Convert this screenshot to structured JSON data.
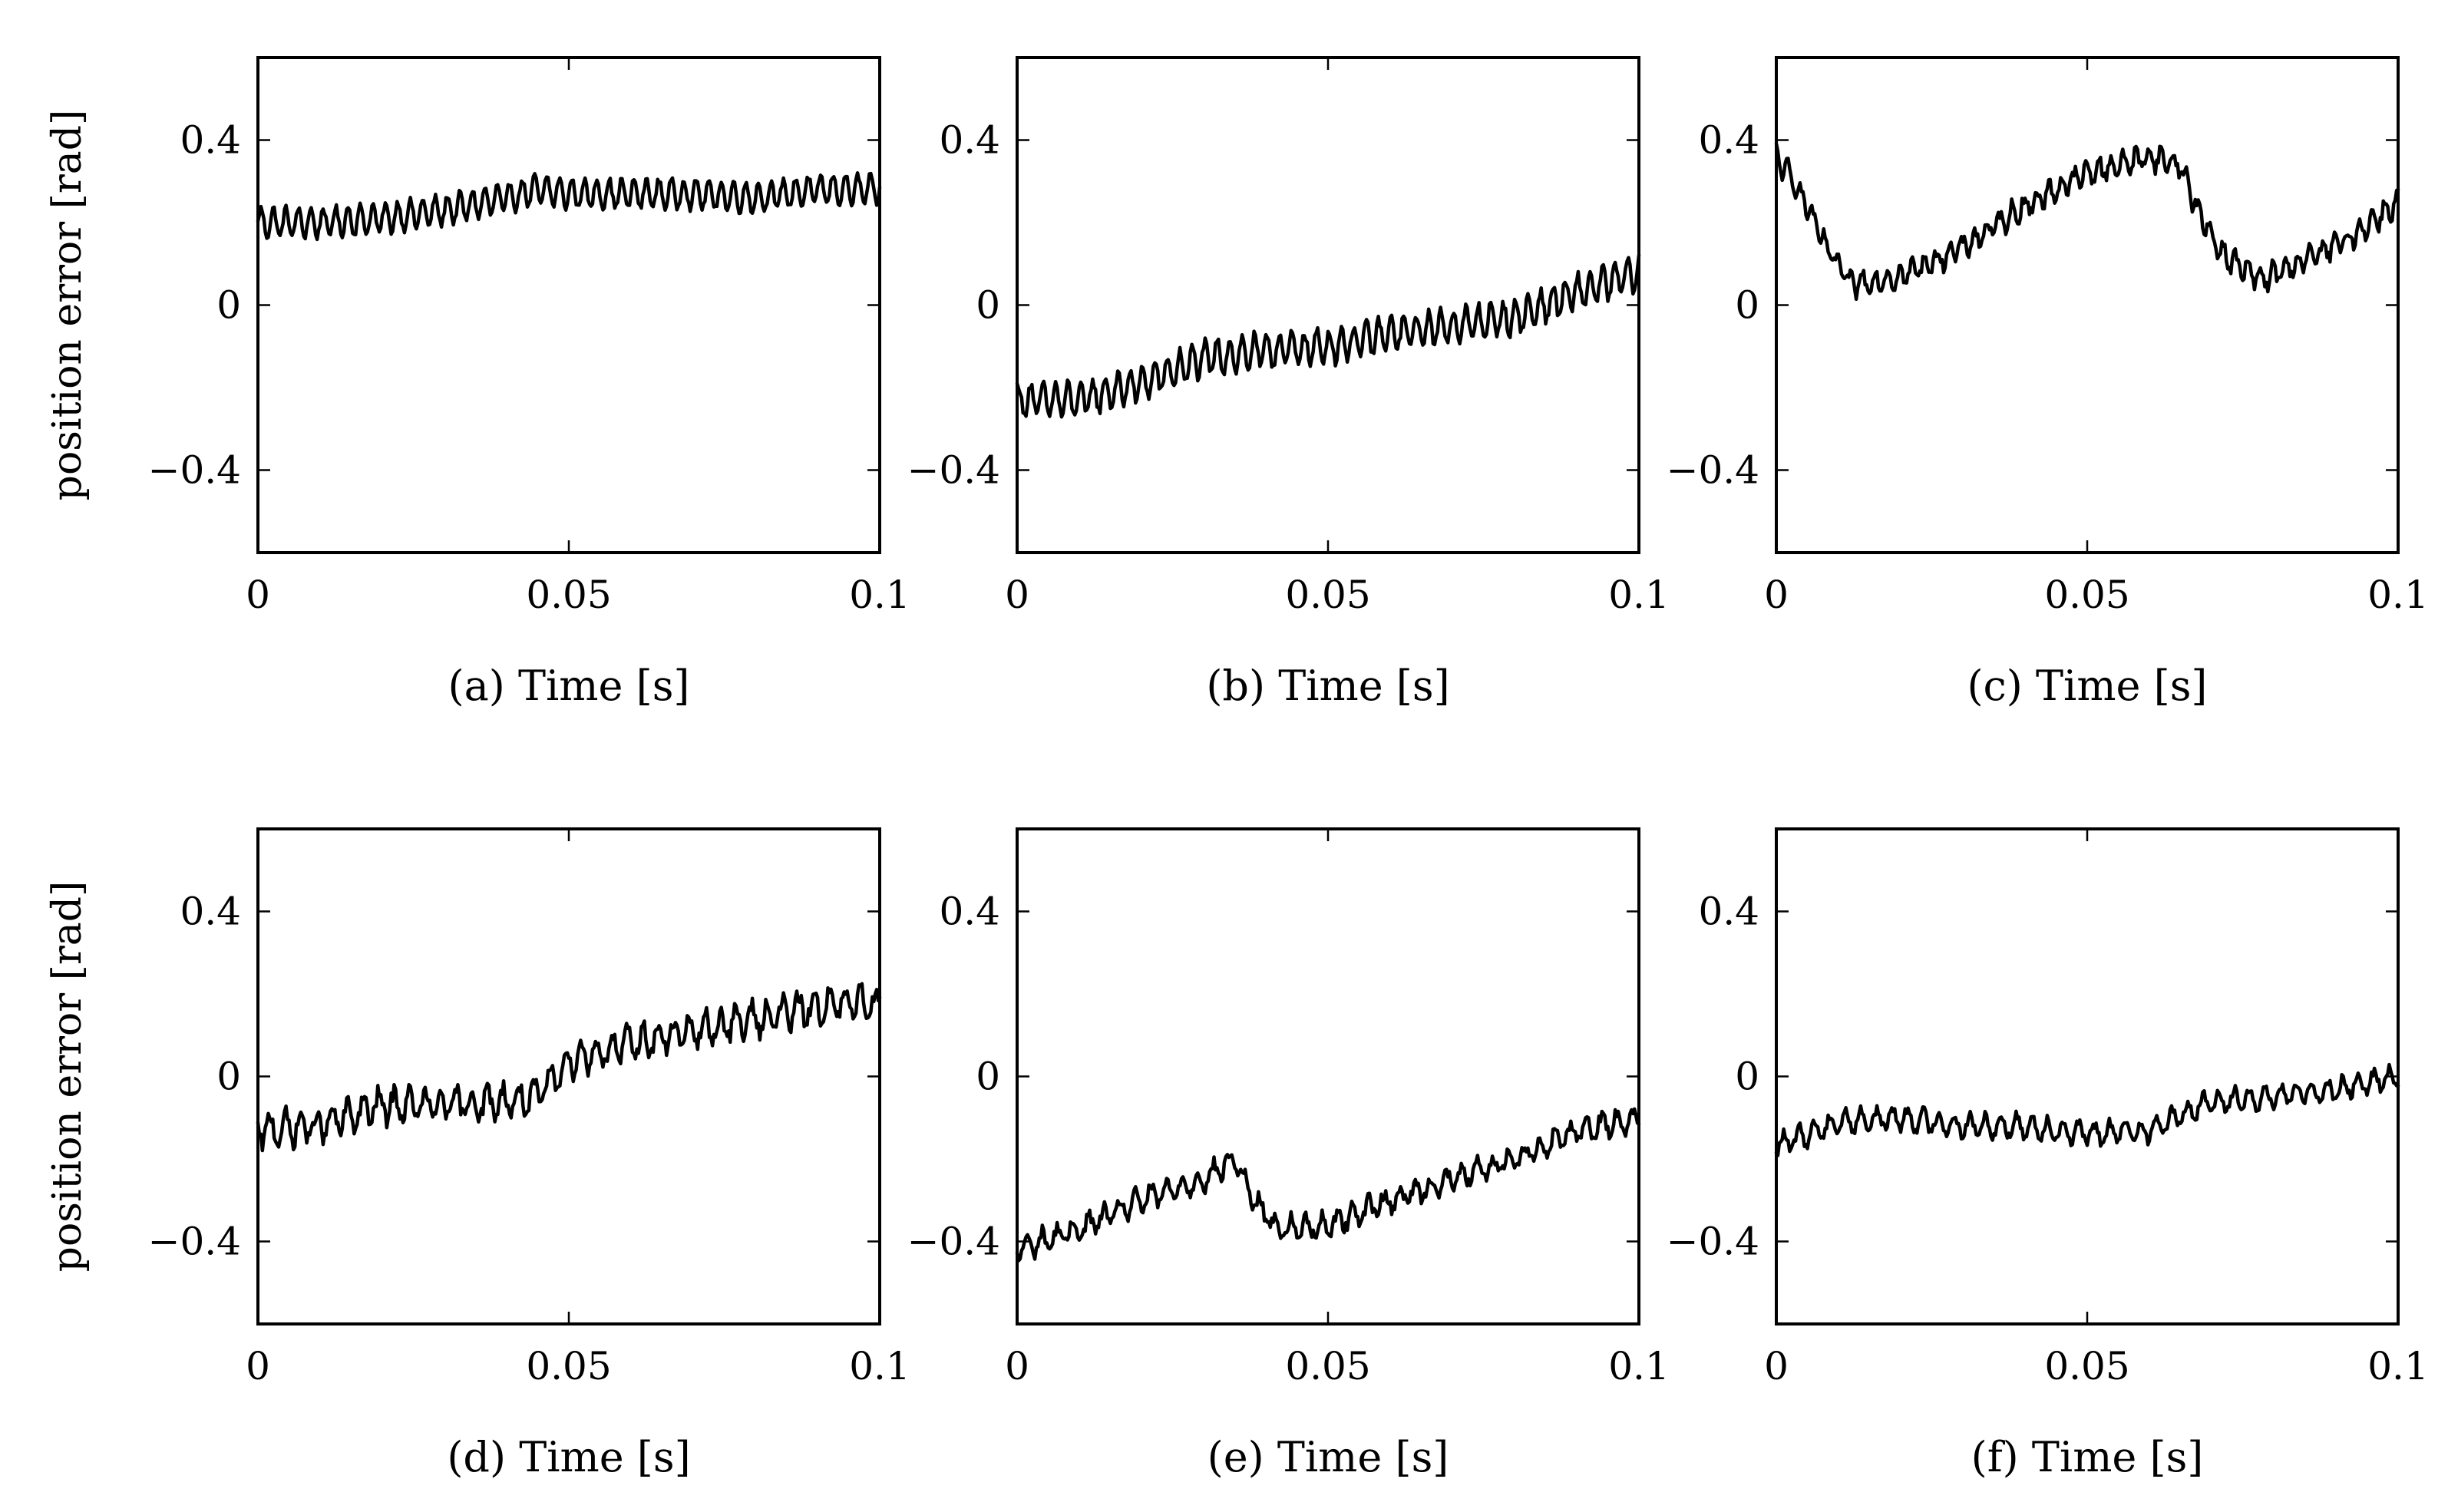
{
  "figure": {
    "ylabel": "position error [rad]",
    "panels": [
      {
        "id": "a",
        "caption": "(a) Time [s]"
      },
      {
        "id": "b",
        "caption": "(b) Time [s]"
      },
      {
        "id": "c",
        "caption": "(c) Time [s]"
      },
      {
        "id": "d",
        "caption": "(d) Time [s]"
      },
      {
        "id": "e",
        "caption": "(e) Time [s]"
      },
      {
        "id": "f",
        "caption": "(f) Time [s]"
      }
    ]
  },
  "chart_data": [
    {
      "type": "line",
      "panel": "a",
      "title": "",
      "xlabel": "(a) Time [s]",
      "ylabel": "position error [rad]",
      "xlim": [
        0,
        0.1
      ],
      "ylim": [
        -0.6,
        0.6
      ],
      "xticks": [
        0,
        0.05,
        0.1
      ],
      "xtick_labels": [
        "0",
        "0.05",
        "0.1"
      ],
      "yticks": [
        -0.4,
        0,
        0.4
      ],
      "ytick_labels": [
        "−0.4",
        "0",
        "0.4"
      ],
      "series": [
        {
          "name": "position error",
          "trend_x": [
            0,
            0.01,
            0.02,
            0.03,
            0.04,
            0.045,
            0.05,
            0.06,
            0.07,
            0.08,
            0.09,
            0.1
          ],
          "trend_y": [
            0.2,
            0.2,
            0.21,
            0.23,
            0.26,
            0.28,
            0.27,
            0.27,
            0.27,
            0.26,
            0.28,
            0.28
          ],
          "ripple_amplitude": 0.035,
          "ripple_cycles": 50,
          "noise": 0.008
        }
      ]
    },
    {
      "type": "line",
      "panel": "b",
      "title": "",
      "xlabel": "(b) Time [s]",
      "ylabel": "position error [rad]",
      "xlim": [
        0,
        0.1
      ],
      "ylim": [
        -0.6,
        0.6
      ],
      "xticks": [
        0,
        0.05,
        0.1
      ],
      "xtick_labels": [
        "0",
        "0.05",
        "0.1"
      ],
      "yticks": [
        -0.4,
        0,
        0.4
      ],
      "ytick_labels": [
        "−0.4",
        "0",
        "0.4"
      ],
      "series": [
        {
          "name": "position error",
          "trend_x": [
            0,
            0.01,
            0.02,
            0.03,
            0.04,
            0.05,
            0.06,
            0.07,
            0.08,
            0.09,
            0.1
          ],
          "trend_y": [
            -0.23,
            -0.23,
            -0.19,
            -0.13,
            -0.11,
            -0.1,
            -0.07,
            -0.05,
            -0.03,
            0.03,
            0.08
          ],
          "ripple_amplitude": 0.04,
          "ripple_cycles": 50,
          "noise": 0.012
        }
      ]
    },
    {
      "type": "line",
      "panel": "c",
      "title": "",
      "xlabel": "(c) Time [s]",
      "ylabel": "position error [rad]",
      "xlim": [
        0,
        0.1
      ],
      "ylim": [
        -0.6,
        0.6
      ],
      "xticks": [
        0,
        0.05,
        0.1
      ],
      "xtick_labels": [
        "0",
        "0.05",
        "0.1"
      ],
      "yticks": [
        -0.4,
        0,
        0.4
      ],
      "ytick_labels": [
        "−0.4",
        "0",
        "0.4"
      ],
      "series": [
        {
          "name": "position error",
          "trend_x": [
            0,
            0.004,
            0.008,
            0.012,
            0.02,
            0.03,
            0.04,
            0.05,
            0.06,
            0.065,
            0.068,
            0.072,
            0.078,
            0.085,
            0.092,
            0.1
          ],
          "trend_y": [
            0.36,
            0.27,
            0.14,
            0.05,
            0.07,
            0.14,
            0.24,
            0.32,
            0.36,
            0.34,
            0.22,
            0.12,
            0.06,
            0.11,
            0.16,
            0.25
          ],
          "ripple_amplitude": 0.025,
          "ripple_cycles": 50,
          "noise": 0.015
        }
      ]
    },
    {
      "type": "line",
      "panel": "d",
      "title": "",
      "xlabel": "(d) Time [s]",
      "ylabel": "position error [rad]",
      "xlim": [
        0,
        0.1
      ],
      "ylim": [
        -0.6,
        0.6
      ],
      "xticks": [
        0,
        0.05,
        0.1
      ],
      "xtick_labels": [
        "0",
        "0.05",
        "0.1"
      ],
      "yticks": [
        -0.4,
        0,
        0.4
      ],
      "ytick_labels": [
        "−0.4",
        "0",
        "0.4"
      ],
      "series": [
        {
          "name": "position error",
          "trend_x": [
            0,
            0.01,
            0.02,
            0.03,
            0.04,
            0.045,
            0.05,
            0.06,
            0.07,
            0.08,
            0.09,
            0.1
          ],
          "trend_y": [
            -0.13,
            -0.12,
            -0.07,
            -0.07,
            -0.06,
            -0.05,
            0.04,
            0.08,
            0.11,
            0.14,
            0.17,
            0.18
          ],
          "ripple_amplitude": 0.035,
          "ripple_cycles": 40,
          "noise": 0.02
        }
      ]
    },
    {
      "type": "line",
      "panel": "e",
      "title": "",
      "xlabel": "(e) Time [s]",
      "ylabel": "position error [rad]",
      "xlim": [
        0,
        0.1
      ],
      "ylim": [
        -0.6,
        0.6
      ],
      "xticks": [
        0,
        0.05,
        0.1
      ],
      "xtick_labels": [
        "0",
        "0.05",
        "0.1"
      ],
      "yticks": [
        -0.4,
        0,
        0.4
      ],
      "ytick_labels": [
        "−0.4",
        "0",
        "0.4"
      ],
      "series": [
        {
          "name": "position error",
          "trend_x": [
            0,
            0.01,
            0.02,
            0.03,
            0.035,
            0.038,
            0.042,
            0.05,
            0.06,
            0.07,
            0.08,
            0.09,
            0.1
          ],
          "trend_y": [
            -0.42,
            -0.37,
            -0.3,
            -0.25,
            -0.2,
            -0.3,
            -0.37,
            -0.36,
            -0.3,
            -0.25,
            -0.2,
            -0.13,
            -0.1
          ],
          "ripple_amplitude": 0.025,
          "ripple_cycles": 40,
          "noise": 0.015
        }
      ]
    },
    {
      "type": "line",
      "panel": "f",
      "title": "",
      "xlabel": "(f) Time [s]",
      "ylabel": "position error [rad]",
      "xlim": [
        0,
        0.1
      ],
      "ylim": [
        -0.6,
        0.6
      ],
      "xticks": [
        0,
        0.05,
        0.1
      ],
      "xtick_labels": [
        "0",
        "0.05",
        "0.1"
      ],
      "yticks": [
        -0.4,
        0,
        0.4
      ],
      "ytick_labels": [
        "−0.4",
        "0",
        "0.4"
      ],
      "series": [
        {
          "name": "position error",
          "trend_x": [
            0,
            0.01,
            0.02,
            0.03,
            0.04,
            0.05,
            0.06,
            0.07,
            0.08,
            0.09,
            0.1
          ],
          "trend_y": [
            -0.17,
            -0.11,
            -0.1,
            -0.12,
            -0.12,
            -0.14,
            -0.13,
            -0.06,
            -0.05,
            -0.03,
            0.0
          ],
          "ripple_amplitude": 0.025,
          "ripple_cycles": 40,
          "noise": 0.012
        }
      ]
    }
  ]
}
